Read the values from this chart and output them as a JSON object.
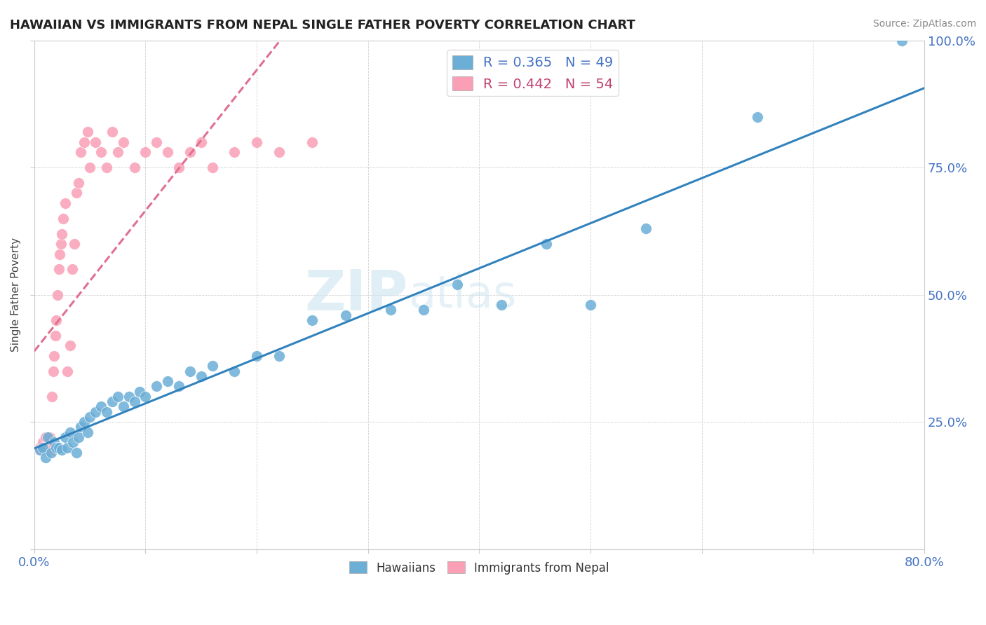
{
  "title": "HAWAIIAN VS IMMIGRANTS FROM NEPAL SINGLE FATHER POVERTY CORRELATION CHART",
  "source": "Source: ZipAtlas.com",
  "ylabel": "Single Father Poverty",
  "xlim": [
    0.0,
    0.8
  ],
  "ylim": [
    0.0,
    1.0
  ],
  "legend_blue": "R = 0.365   N = 49",
  "legend_pink": "R = 0.442   N = 54",
  "blue_color": "#6baed6",
  "pink_color": "#fa9fb5",
  "blue_line_color": "#3182bd",
  "pink_line_color": "#e07090",
  "watermark_zip": "ZIP",
  "watermark_atlas": "atlas",
  "hawaiians_x": [
    0.005,
    0.008,
    0.01,
    0.012,
    0.015,
    0.018,
    0.02,
    0.022,
    0.025,
    0.028,
    0.03,
    0.032,
    0.035,
    0.038,
    0.04,
    0.042,
    0.045,
    0.048,
    0.05,
    0.055,
    0.06,
    0.065,
    0.07,
    0.075,
    0.08,
    0.085,
    0.09,
    0.095,
    0.1,
    0.11,
    0.12,
    0.13,
    0.14,
    0.15,
    0.16,
    0.18,
    0.2,
    0.22,
    0.25,
    0.28,
    0.32,
    0.35,
    0.38,
    0.42,
    0.46,
    0.5,
    0.55,
    0.65,
    0.78
  ],
  "hawaiians_y": [
    0.195,
    0.2,
    0.18,
    0.22,
    0.19,
    0.21,
    0.2,
    0.2,
    0.195,
    0.22,
    0.2,
    0.23,
    0.21,
    0.19,
    0.22,
    0.24,
    0.25,
    0.23,
    0.26,
    0.27,
    0.28,
    0.27,
    0.29,
    0.3,
    0.28,
    0.3,
    0.29,
    0.31,
    0.3,
    0.32,
    0.33,
    0.32,
    0.35,
    0.34,
    0.36,
    0.35,
    0.38,
    0.38,
    0.45,
    0.46,
    0.47,
    0.47,
    0.52,
    0.48,
    0.6,
    0.48,
    0.63,
    0.85,
    1.0
  ],
  "nepal_x": [
    0.005,
    0.007,
    0.008,
    0.009,
    0.01,
    0.011,
    0.012,
    0.013,
    0.014,
    0.015,
    0.016,
    0.017,
    0.018,
    0.019,
    0.02,
    0.021,
    0.022,
    0.023,
    0.024,
    0.025,
    0.026,
    0.028,
    0.03,
    0.032,
    0.034,
    0.036,
    0.038,
    0.04,
    0.042,
    0.045,
    0.048,
    0.05,
    0.055,
    0.06,
    0.065,
    0.07,
    0.075,
    0.08,
    0.09,
    0.1,
    0.11,
    0.12,
    0.13,
    0.14,
    0.15,
    0.16,
    0.18,
    0.2,
    0.22,
    0.25,
    0.005,
    0.01,
    0.015,
    0.02
  ],
  "nepal_y": [
    0.2,
    0.195,
    0.21,
    0.2,
    0.22,
    0.2,
    0.195,
    0.21,
    0.22,
    0.2,
    0.3,
    0.35,
    0.38,
    0.42,
    0.45,
    0.5,
    0.55,
    0.58,
    0.6,
    0.62,
    0.65,
    0.68,
    0.35,
    0.4,
    0.55,
    0.6,
    0.7,
    0.72,
    0.78,
    0.8,
    0.82,
    0.75,
    0.8,
    0.78,
    0.75,
    0.82,
    0.78,
    0.8,
    0.75,
    0.78,
    0.8,
    0.78,
    0.75,
    0.78,
    0.8,
    0.75,
    0.78,
    0.8,
    0.78,
    0.8,
    0.195,
    0.2,
    0.195,
    0.2
  ]
}
